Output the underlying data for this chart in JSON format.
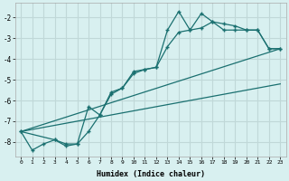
{
  "xlabel": "Humidex (Indice chaleur)",
  "bg_color": "#d8f0f0",
  "grid_color": "#c0d8d8",
  "line_color": "#1a7070",
  "xlim": [
    -0.5,
    23.5
  ],
  "ylim": [
    -8.7,
    -1.3
  ],
  "yticks": [
    -8,
    -7,
    -6,
    -5,
    -4,
    -3,
    -2
  ],
  "xticks": [
    0,
    1,
    2,
    3,
    4,
    5,
    6,
    7,
    8,
    9,
    10,
    11,
    12,
    13,
    14,
    15,
    16,
    17,
    18,
    19,
    20,
    21,
    22,
    23
  ],
  "line1_x": [
    0,
    1,
    2,
    3,
    4,
    5,
    6,
    7,
    8,
    9,
    10,
    11,
    12,
    13,
    14,
    15,
    16,
    17,
    18,
    19,
    20,
    21,
    22,
    23
  ],
  "line1_y": [
    -7.5,
    -8.4,
    -8.1,
    -7.9,
    -8.2,
    -8.1,
    -6.3,
    -6.7,
    -5.6,
    -5.4,
    -4.6,
    -4.5,
    -4.4,
    -2.6,
    -1.7,
    -2.6,
    -1.8,
    -2.2,
    -2.6,
    -2.6,
    -2.6,
    -2.6,
    -3.5,
    -3.5
  ],
  "line2_x": [
    0,
    3,
    4,
    5,
    6,
    7,
    8,
    9,
    10,
    11,
    12,
    13,
    14,
    15,
    16,
    17,
    18,
    19,
    20,
    21,
    22,
    23
  ],
  "line2_y": [
    -7.5,
    -7.9,
    -8.1,
    -8.1,
    -7.5,
    -6.7,
    -5.7,
    -5.4,
    -4.7,
    -4.5,
    -4.4,
    -3.4,
    -2.7,
    -2.6,
    -2.5,
    -2.2,
    -2.3,
    -2.4,
    -2.6,
    -2.6,
    -3.5,
    -3.5
  ],
  "line3_x": [
    0,
    23
  ],
  "line3_y": [
    -7.5,
    -3.5
  ],
  "line4_x": [
    0,
    23
  ],
  "line4_y": [
    -7.5,
    -5.2
  ]
}
